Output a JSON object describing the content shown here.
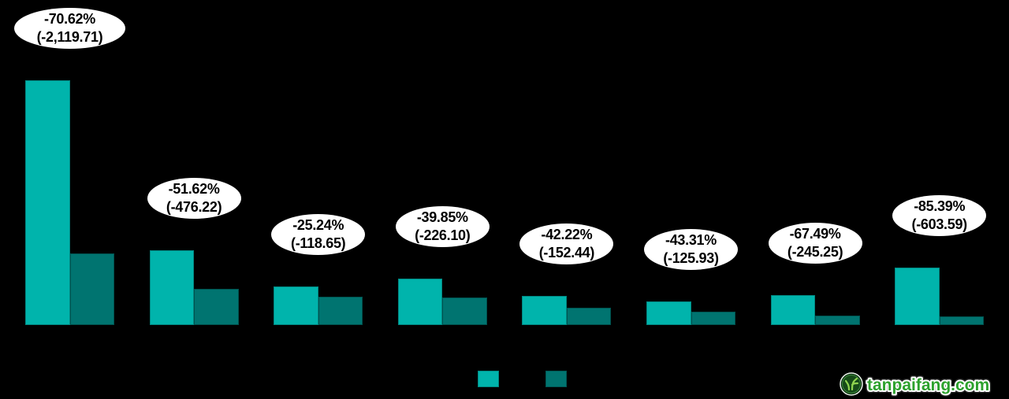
{
  "chart_data": {
    "type": "bar",
    "title": "",
    "background_color": "#000000",
    "axes_visible": false,
    "grid": false,
    "legend_position": "bottom-center",
    "ylim": [
      0,
      3300
    ],
    "series": [
      {
        "name": "series-1-before",
        "color": "#00b4ac",
        "values": [
          3001.57,
          922.55,
          470.09,
          567.38,
          361.06,
          290.77,
          363.39,
          706.86
        ]
      },
      {
        "name": "series-2-after",
        "color": "#007470",
        "values": [
          881.86,
          446.33,
          351.44,
          341.28,
          208.62,
          164.84,
          118.14,
          103.27
        ]
      }
    ],
    "groups": [
      {
        "pct_label": "-70.62%",
        "abs_label": "(-2,119.71)",
        "before": 3001.57,
        "after": 881.86
      },
      {
        "pct_label": "-51.62%",
        "abs_label": "(-476.22)",
        "before": 922.55,
        "after": 446.33
      },
      {
        "pct_label": "-25.24%",
        "abs_label": "(-118.65)",
        "before": 470.09,
        "after": 351.44
      },
      {
        "pct_label": "-39.85%",
        "abs_label": "(-226.10)",
        "before": 567.38,
        "after": 341.28
      },
      {
        "pct_label": "-42.22%",
        "abs_label": "(-152.44)",
        "before": 361.06,
        "after": 208.62
      },
      {
        "pct_label": "-43.31%",
        "abs_label": "(-125.93)",
        "before": 290.77,
        "after": 164.84
      },
      {
        "pct_label": "-67.49%",
        "abs_label": "(-245.25)",
        "before": 363.39,
        "after": 118.14
      },
      {
        "pct_label": "-85.39%",
        "abs_label": "(-603.59)",
        "before": 706.86,
        "after": 103.27
      }
    ],
    "callout_style": {
      "fill": "#ffffff",
      "text_color": "#000000"
    }
  },
  "legend": {
    "swatches": [
      {
        "name": "series-1",
        "color": "#00b4ac"
      },
      {
        "name": "series-2",
        "color": "#007470"
      }
    ]
  },
  "watermark": {
    "text": "tanpaifang.com",
    "text_color": "#2da12d",
    "outline_color": "#ffffff"
  }
}
